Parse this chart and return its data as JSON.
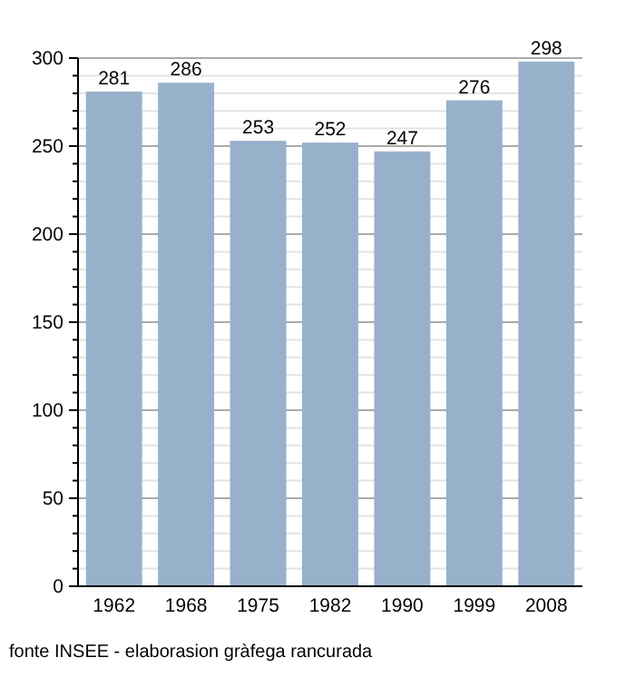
{
  "chart_data": {
    "type": "bar",
    "categories": [
      "1962",
      "1968",
      "1975",
      "1982",
      "1990",
      "1999",
      "2008"
    ],
    "values": [
      281,
      286,
      253,
      252,
      247,
      276,
      298
    ],
    "color": "#97b1cb",
    "ylim": [
      0,
      300
    ],
    "yticks": [
      0,
      {
        "value": 10,
        "label": null
      },
      {
        "value": 20,
        "label": null
      },
      {
        "value": 30,
        "label": null
      },
      {
        "value": 40,
        "label": null
      },
      50,
      {
        "value": 60,
        "label": null
      },
      {
        "value": 70,
        "label": null
      },
      {
        "value": 80,
        "label": null
      },
      {
        "value": 90,
        "label": null
      },
      100,
      {
        "value": 110,
        "label": null
      },
      {
        "value": 120,
        "label": null
      },
      {
        "value": 130,
        "label": null
      },
      {
        "value": 140,
        "label": null
      },
      150,
      {
        "value": 160,
        "label": null
      },
      {
        "value": 170,
        "label": null
      },
      {
        "value": 180,
        "label": null
      },
      {
        "value": 190,
        "label": null
      },
      200,
      {
        "value": 210,
        "label": null
      },
      {
        "value": 220,
        "label": null
      },
      {
        "value": 230,
        "label": null
      },
      {
        "value": 240,
        "label": null
      },
      250,
      {
        "value": 260,
        "label": null
      },
      {
        "value": 270,
        "label": null
      },
      {
        "value": 280,
        "label": null
      },
      {
        "value": 290,
        "label": null
      },
      300
    ],
    "grid": true,
    "data_labels": true,
    "annotations": [
      "fonte INSEE - elaborasion gràfega rancurada"
    ]
  }
}
